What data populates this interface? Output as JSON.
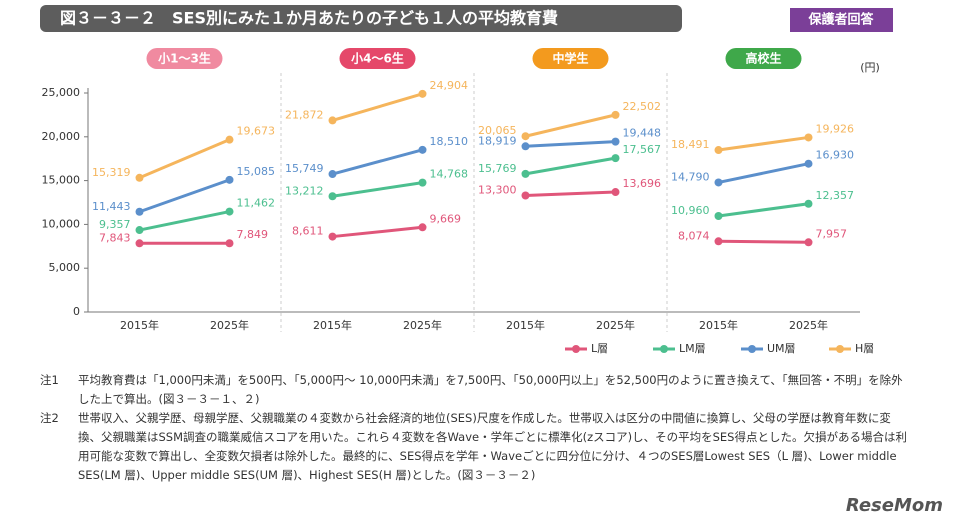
{
  "header": {
    "title": "図３－３－２　SES別にみた１か月あたりの子ども１人の平均教育費",
    "badge": "保護者回答"
  },
  "chart_data": {
    "type": "line",
    "unit": "(円)",
    "categories": [
      "2015年",
      "2025年"
    ],
    "groups": [
      {
        "name": "小1～3生",
        "color": "#f08aa0"
      },
      {
        "name": "小4～6生",
        "color": "#e5486a"
      },
      {
        "name": "中学生",
        "color": "#f39a1e"
      },
      {
        "name": "高校生",
        "color": "#3fa84a"
      }
    ],
    "series": [
      {
        "name": "L層",
        "color": "#e0567a",
        "values": [
          [
            7843,
            7849
          ],
          [
            8611,
            9669
          ],
          [
            13300,
            13696
          ],
          [
            8074,
            7957
          ]
        ],
        "value_labels": [
          [
            "7,843",
            "7,849"
          ],
          [
            "8,611",
            "9,669"
          ],
          [
            "13,300",
            "13,696"
          ],
          [
            "8,074",
            "7,957"
          ]
        ]
      },
      {
        "name": "LM層",
        "color": "#4cbf8f",
        "values": [
          [
            9357,
            11462
          ],
          [
            13212,
            14768
          ],
          [
            15769,
            17567
          ],
          [
            10960,
            12357
          ]
        ],
        "value_labels": [
          [
            "9,357",
            "11,462"
          ],
          [
            "13,212",
            "14,768"
          ],
          [
            "15,769",
            "17,567"
          ],
          [
            "10,960",
            "12,357"
          ]
        ]
      },
      {
        "name": "UM層",
        "color": "#5b8fcb",
        "values": [
          [
            11443,
            15085
          ],
          [
            15749,
            18510
          ],
          [
            18919,
            19448
          ],
          [
            14790,
            16930
          ]
        ],
        "value_labels": [
          [
            "11,443",
            "15,085"
          ],
          [
            "15,749",
            "18,510"
          ],
          [
            "18,919",
            "19,448"
          ],
          [
            "14,790",
            "16,930"
          ]
        ]
      },
      {
        "name": "H層",
        "color": "#f5b55c",
        "values": [
          [
            15319,
            19673
          ],
          [
            21872,
            24904
          ],
          [
            20065,
            22502
          ],
          [
            18491,
            19926
          ]
        ],
        "value_labels": [
          [
            "15,319",
            "19,673"
          ],
          [
            "21,872",
            "24,904"
          ],
          [
            "20,065",
            "22,502"
          ],
          [
            "18,491",
            "19,926"
          ]
        ]
      }
    ],
    "ylim": [
      0,
      25000
    ],
    "yticks": [
      0,
      {
        "value": 5000,
        "label": "5,000"
      },
      {
        "value": 10000,
        "label": "10,000"
      },
      {
        "value": 15000,
        "label": "15,000"
      },
      {
        "value": 20000,
        "label": "20,000"
      },
      {
        "value": 25000,
        "label": "25,000"
      }
    ],
    "grid": false
  },
  "notes": [
    {
      "label": "注1",
      "text": "平均教育費は「1,000円未満」を500円、「5,000円～ 10,000円未満」を7,500円、「50,000円以上」を52,500円のように置き換えて、「無回答・不明」を除外した上で算出。(図３－３－１、２)"
    },
    {
      "label": "注2",
      "text": "世帯収入、父親学歴、母親学歴、父親職業の４変数から社会経済的地位(SES)尺度を作成した。世帯収入は区分の中間値に換算し、父母の学歴は教育年数に変換、父親職業はSSM調査の職業威信スコアを用いた。これら４変数を各Wave・学年ごとに標準化(zスコア)し、その平均をSES得点とした。欠損がある場合は利用可能な変数で算出し、全変数欠損者は除外した。最終的に、SES得点を学年・Waveごとに四分位に分け、４つのSES層Lowest SES（L 層)、Lower middle SES(LM 層)、Upper middle SES(UM 層)、Highest SES(H 層)とした。(図３－３－２)"
    }
  ],
  "watermark": "ReseMom"
}
